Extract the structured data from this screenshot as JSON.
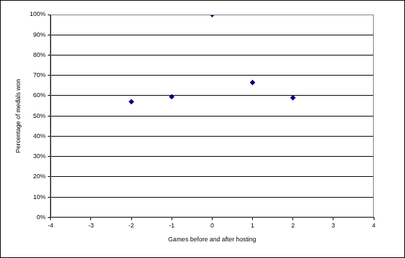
{
  "chart_data": {
    "type": "scatter",
    "x_label": "Games before and after hosting",
    "y_label": "Percentage of medals won",
    "x": [
      -2,
      -1,
      0,
      1,
      2
    ],
    "values": [
      57,
      59.5,
      100,
      66.5,
      59
    ],
    "color": "#000080",
    "marker": "diamond",
    "xlim": [
      -4,
      4
    ],
    "xticks": [
      -4,
      -3,
      -2,
      -1,
      0,
      1,
      2,
      3,
      4
    ],
    "ylim": [
      0,
      100
    ],
    "yticks": [
      {
        "value": 0,
        "label": "0%"
      },
      {
        "value": 10,
        "label": "10%"
      },
      {
        "value": 20,
        "label": "20%"
      },
      {
        "value": 30,
        "label": "30%"
      },
      {
        "value": 40,
        "label": "40%"
      },
      {
        "value": 50,
        "label": "50%"
      },
      {
        "value": 60,
        "label": "60%"
      },
      {
        "value": 70,
        "label": "70%"
      },
      {
        "value": 80,
        "label": "80%"
      },
      {
        "value": 90,
        "label": "90%"
      },
      {
        "value": 100,
        "label": "100%"
      }
    ],
    "grid": "y"
  }
}
